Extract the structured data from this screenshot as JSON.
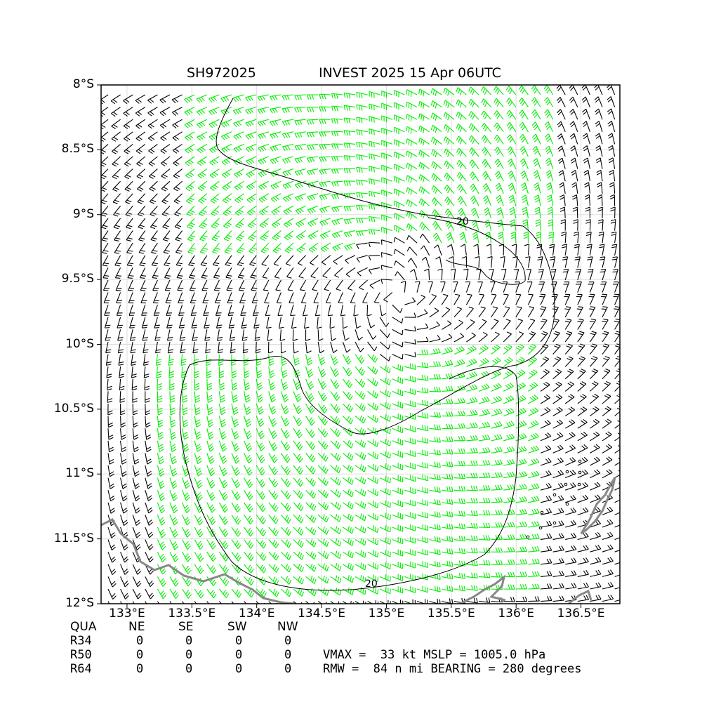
{
  "header": {
    "storm_id": "SH972025",
    "storm_title": "INVEST 2025 15 Apr 06UTC"
  },
  "axes": {
    "lat_labels": [
      "8°S",
      "8.5°S",
      "9°S",
      "9.5°S",
      "10°S",
      "10.5°S",
      "11°S",
      "11.5°S",
      "12°S"
    ],
    "lon_labels": [
      "133°E",
      "133.5°E",
      "134°E",
      "134.5°E",
      "135°E",
      "135.5°E",
      "136°E",
      "136.5°E"
    ],
    "lat_range": [
      -12,
      -8
    ],
    "lon_range": [
      132.8,
      136.8
    ],
    "grid": true
  },
  "contour": {
    "label": "20"
  },
  "colors": {
    "strong_barb": "#00ee00",
    "weak_barb": "#000000",
    "coastline": "#888888"
  },
  "wind_radii": {
    "header": {
      "qua": "QUA",
      "ne": "NE",
      "se": "SE",
      "sw": "SW",
      "nw": "NW"
    },
    "rows": [
      {
        "label": "R34",
        "ne": "0",
        "se": "0",
        "sw": "0",
        "nw": "0"
      },
      {
        "label": "R50",
        "ne": "0",
        "se": "0",
        "sw": "0",
        "nw": "0"
      },
      {
        "label": "R64",
        "ne": "0",
        "se": "0",
        "sw": "0",
        "nw": "0"
      }
    ]
  },
  "summary": {
    "line1": "VMAX =  33 kt MSLP = 1005.0 hPa",
    "line2": "RMW =  84 n mi BEARING = 280 degrees"
  }
}
